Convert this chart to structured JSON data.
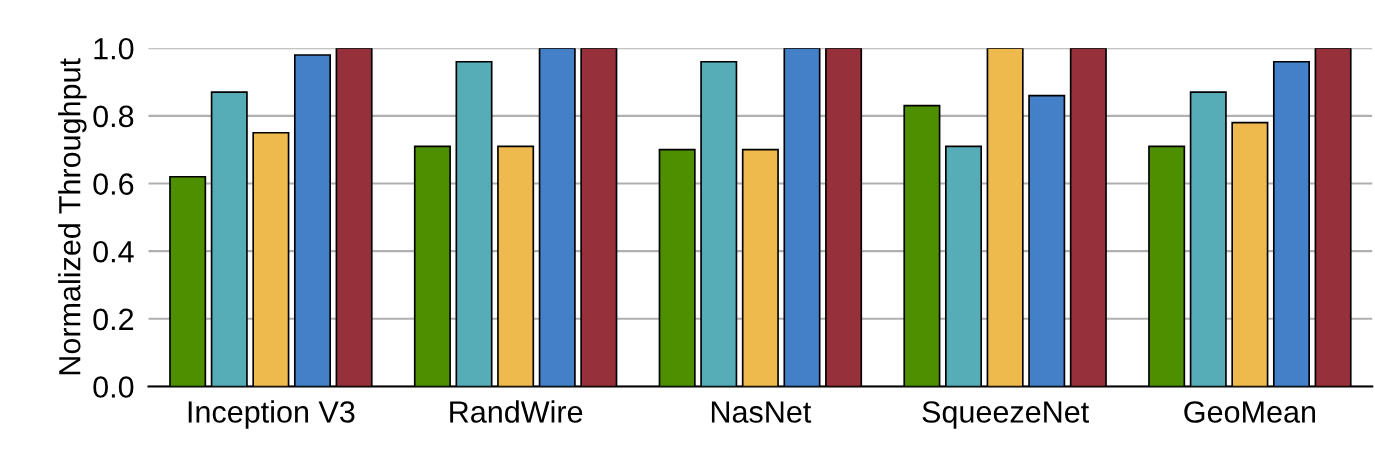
{
  "chart_data": {
    "type": "bar",
    "ylabel": "Normalized Throughput",
    "categories": [
      "Inception V3",
      "RandWire",
      "NasNet",
      "SqueezeNet",
      "GeoMean"
    ],
    "series": [
      {
        "color": "#4e8f00",
        "values": [
          0.62,
          0.71,
          0.7,
          0.83,
          0.71
        ]
      },
      {
        "color": "#56adb8",
        "values": [
          0.87,
          0.96,
          0.96,
          0.71,
          0.87
        ]
      },
      {
        "color": "#eeba4e",
        "values": [
          0.75,
          0.71,
          0.7,
          1.0,
          0.78
        ]
      },
      {
        "color": "#4380c8",
        "values": [
          0.98,
          1.0,
          1.0,
          0.86,
          0.96
        ]
      },
      {
        "color": "#96303a",
        "values": [
          1.0,
          1.0,
          1.0,
          1.0,
          1.0
        ]
      }
    ],
    "ylim": [
      0,
      1.0
    ],
    "yticks": [
      {
        "value": 0,
        "label": "0.0"
      },
      {
        "value": 0.2,
        "label": "0.2"
      },
      {
        "value": 0.4,
        "label": "0.4"
      },
      {
        "value": 0.6,
        "label": "0.6"
      },
      {
        "value": 0.8,
        "label": "0.8"
      },
      {
        "value": 1.0,
        "label": "1.0"
      }
    ],
    "grid": "y"
  }
}
